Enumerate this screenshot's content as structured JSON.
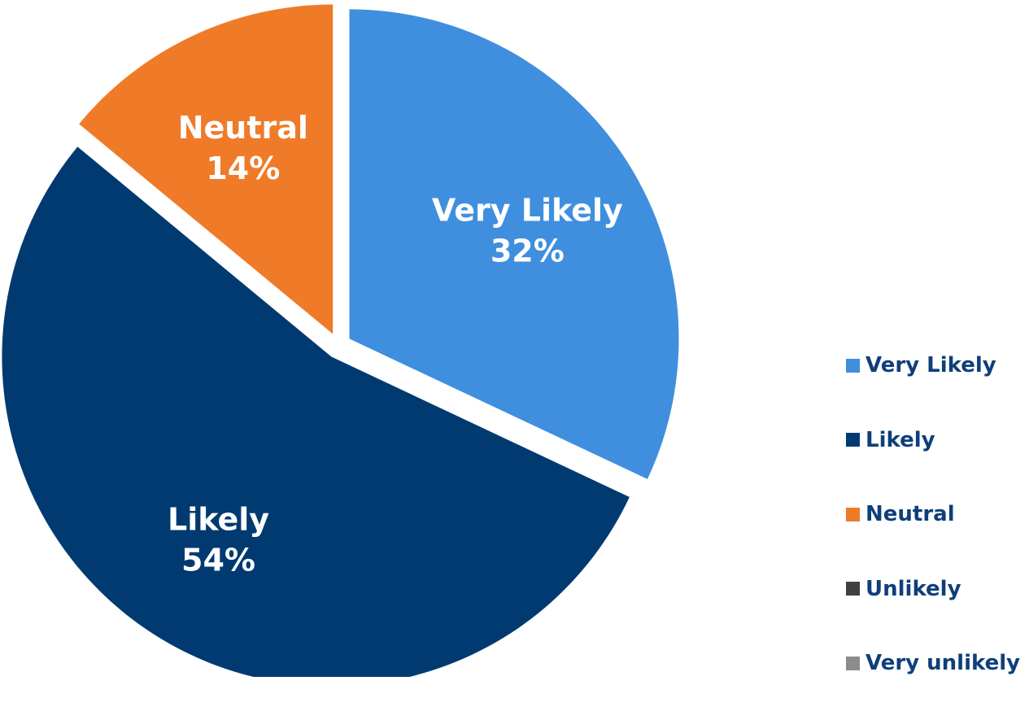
{
  "chart_data": {
    "type": "pie",
    "title": "",
    "slices": [
      {
        "label": "Very Likely",
        "value": 32,
        "value_text": "32%",
        "color": "#3f8fde"
      },
      {
        "label": "Likely",
        "value": 54,
        "value_text": "54%",
        "color": "#003a70"
      },
      {
        "label": "Neutral",
        "value": 14,
        "value_text": "14%",
        "color": "#ef7b29"
      },
      {
        "label": "Unlikely",
        "value": 0,
        "value_text": "0%",
        "color": "#404040"
      },
      {
        "label": "Very unlikely",
        "value": 0,
        "value_text": "0%",
        "color": "#8c8c8c"
      }
    ],
    "exploded": true,
    "legend_position": "right",
    "data_labels": "category and percent, inside slices"
  }
}
